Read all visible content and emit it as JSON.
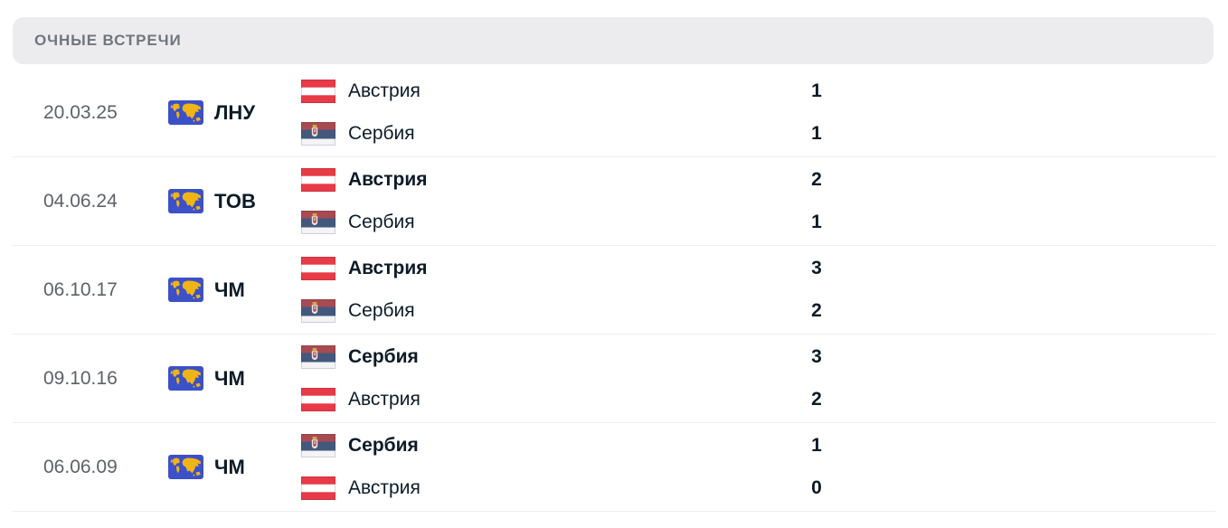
{
  "section": {
    "title": "ОЧНЫЕ ВСТРЕЧИ"
  },
  "colors": {
    "header_bg": "#ececee",
    "header_text": "#70767e",
    "date_text": "#5d6268",
    "dark_text": "#0c1b28",
    "divider": "#ededf0",
    "austria_flag_red": "#e93a47",
    "serbia_flag_red": "#a84a52",
    "serbia_flag_blue": "#44587d",
    "world_icon_blue": "#3c50c8",
    "world_icon_land": "#f0b514"
  },
  "matches": [
    {
      "date": "20.03.25",
      "competition": "ЛНУ",
      "competition_icon": "world-map-icon",
      "teams": [
        {
          "name": "Австрия",
          "flag": "austria",
          "bold": false,
          "score": "1"
        },
        {
          "name": "Сербия",
          "flag": "serbia",
          "bold": false,
          "score": "1"
        }
      ]
    },
    {
      "date": "04.06.24",
      "competition": "ТОВ",
      "competition_icon": "world-map-icon",
      "teams": [
        {
          "name": "Австрия",
          "flag": "austria",
          "bold": true,
          "score": "2"
        },
        {
          "name": "Сербия",
          "flag": "serbia",
          "bold": false,
          "score": "1"
        }
      ]
    },
    {
      "date": "06.10.17",
      "competition": "ЧМ",
      "competition_icon": "world-map-icon",
      "teams": [
        {
          "name": "Австрия",
          "flag": "austria",
          "bold": true,
          "score": "3"
        },
        {
          "name": "Сербия",
          "flag": "serbia",
          "bold": false,
          "score": "2"
        }
      ]
    },
    {
      "date": "09.10.16",
      "competition": "ЧМ",
      "competition_icon": "world-map-icon",
      "teams": [
        {
          "name": "Сербия",
          "flag": "serbia",
          "bold": true,
          "score": "3"
        },
        {
          "name": "Австрия",
          "flag": "austria",
          "bold": false,
          "score": "2"
        }
      ]
    },
    {
      "date": "06.06.09",
      "competition": "ЧМ",
      "competition_icon": "world-map-icon",
      "teams": [
        {
          "name": "Сербия",
          "flag": "serbia",
          "bold": true,
          "score": "1"
        },
        {
          "name": "Австрия",
          "flag": "austria",
          "bold": false,
          "score": "0"
        }
      ]
    }
  ]
}
